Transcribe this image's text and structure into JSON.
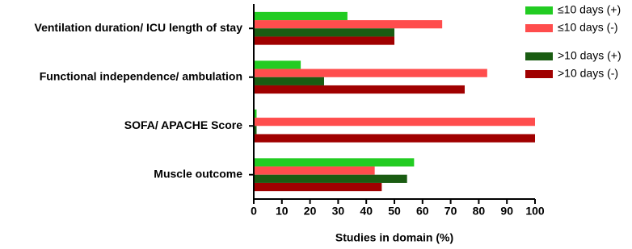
{
  "chart_data": {
    "type": "barh",
    "xlabel": "Studies in domain (%)",
    "categories": [
      "Ventilation duration/ ICU length of stay",
      "Functional independence/ ambulation",
      "SOFA/ APACHE Score",
      "Muscle outcome"
    ],
    "series": [
      {
        "name": "≤10 days (+)",
        "color": "#22cc22",
        "values": [
          33.3,
          16.7,
          1,
          57
        ]
      },
      {
        "name": "≤10 days (-)",
        "color": "#ff4d4d",
        "values": [
          67,
          83,
          100,
          43
        ]
      },
      {
        "name": ">10 days (+)",
        "color": "#1a5c12",
        "values": [
          50,
          25,
          1,
          54.5
        ]
      },
      {
        "name": ">10 days (-)",
        "color": "#a00000",
        "values": [
          50,
          75,
          100,
          45.5
        ]
      }
    ],
    "xlim": [
      0,
      100
    ],
    "xticks": [
      0,
      10,
      20,
      30,
      40,
      50,
      60,
      70,
      80,
      90,
      100
    ]
  }
}
